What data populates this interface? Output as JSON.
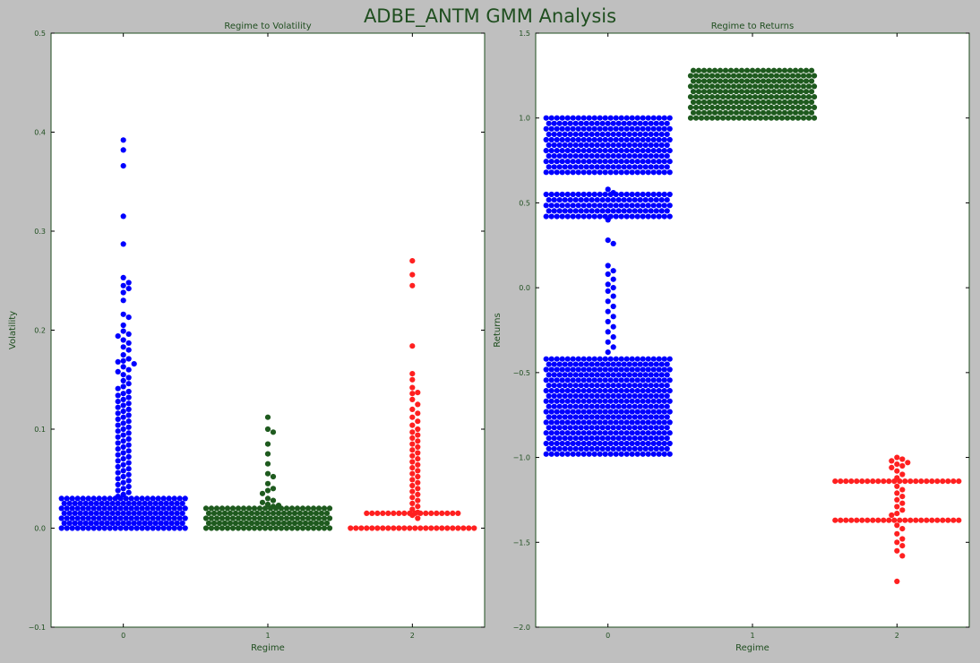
{
  "figure": {
    "suptitle": "ADBE_ANTM GMM Analysis"
  },
  "colors": {
    "regime0": "#0000ff",
    "regime1": "#1e5a1e",
    "regime2": "#ff2020",
    "axis_text": "#1f4e1f",
    "figure_bg": "#bfbfbf",
    "plot_bg": "#ffffff"
  },
  "chart_data": [
    {
      "type": "scatter",
      "style": "swarm",
      "title": "Regime to Volatility",
      "xlabel": "Regime",
      "ylabel": "Volatility",
      "categories": [
        "0",
        "1",
        "2"
      ],
      "ylim": [
        -0.1,
        0.5
      ],
      "yticks": [
        -0.1,
        0.0,
        0.1,
        0.2,
        0.3,
        0.4,
        0.5
      ],
      "ytick_labels": [
        "−0.1",
        "0.0",
        "0.1",
        "0.2",
        "0.3",
        "0.4",
        "0.5"
      ],
      "grid": false,
      "series": [
        {
          "category": "0",
          "dense_bands": [
            {
              "range": [
                0.0,
                0.03
              ],
              "count": 380
            }
          ],
          "values": [
            0.392,
            0.382,
            0.366,
            0.315,
            0.287,
            0.253,
            0.248,
            0.245,
            0.242,
            0.238,
            0.23,
            0.216,
            0.213,
            0.205,
            0.199,
            0.196,
            0.194,
            0.19,
            0.187,
            0.183,
            0.18,
            0.175,
            0.171,
            0.169,
            0.168,
            0.166,
            0.163,
            0.16,
            0.158,
            0.155,
            0.152,
            0.149,
            0.146,
            0.143,
            0.141,
            0.138,
            0.136,
            0.134,
            0.132,
            0.13,
            0.128,
            0.126,
            0.124,
            0.122,
            0.12,
            0.118,
            0.116,
            0.114,
            0.112,
            0.11,
            0.108,
            0.106,
            0.104,
            0.102,
            0.1,
            0.098,
            0.096,
            0.094,
            0.092,
            0.09,
            0.088,
            0.086,
            0.084,
            0.082,
            0.08,
            0.078,
            0.076,
            0.074,
            0.072,
            0.07,
            0.068,
            0.066,
            0.064,
            0.062,
            0.06,
            0.058,
            0.056,
            0.054,
            0.052,
            0.05,
            0.048,
            0.046,
            0.044,
            0.042,
            0.04,
            0.038,
            0.036,
            0.034,
            0.032
          ]
        },
        {
          "category": "1",
          "dense_bands": [
            {
              "range": [
                0.0,
                0.02
              ],
              "count": 150
            }
          ],
          "values": [
            0.112,
            0.1,
            0.097,
            0.085,
            0.075,
            0.065,
            0.055,
            0.052,
            0.045,
            0.04,
            0.038,
            0.035,
            0.03,
            0.028,
            0.026,
            0.024,
            0.023,
            0.022
          ]
        },
        {
          "category": "2",
          "dense_bands": [],
          "values": [
            0.27,
            0.256,
            0.245,
            0.184,
            0.156,
            0.15,
            0.142,
            0.137,
            0.136,
            0.13,
            0.125,
            0.12,
            0.116,
            0.112,
            0.108,
            0.104,
            0.1,
            0.097,
            0.094,
            0.091,
            0.088,
            0.085,
            0.082,
            0.079,
            0.076,
            0.073,
            0.07,
            0.067,
            0.064,
            0.061,
            0.058,
            0.055,
            0.052,
            0.049,
            0.046,
            0.043,
            0.04,
            0.037,
            0.034,
            0.031,
            0.028,
            0.025,
            0.022,
            0.019,
            0.016,
            0.013,
            0.01
          ],
          "repeated": [
            {
              "value": 0.0,
              "count": 34
            },
            {
              "value": 0.015,
              "count": 18
            }
          ]
        }
      ]
    },
    {
      "type": "scatter",
      "style": "swarm",
      "title": "Regime to Returns",
      "xlabel": "Regime",
      "ylabel": "Returns",
      "categories": [
        "0",
        "1",
        "2"
      ],
      "ylim": [
        -2.0,
        1.5
      ],
      "yticks": [
        -2.0,
        -1.5,
        -1.0,
        -0.5,
        0.0,
        0.5,
        1.0,
        1.5
      ],
      "ytick_labels": [
        "−2.0",
        "−1.5",
        "−1.0",
        "−0.5",
        "0.0",
        "0.5",
        "1.0",
        "1.5"
      ],
      "grid": false,
      "series": [
        {
          "category": "0",
          "dense_bands": [
            {
              "range": [
                0.68,
                1.0
              ],
              "count": 300
            },
            {
              "range": [
                0.42,
                0.55
              ],
              "count": 120
            },
            {
              "range": [
                -0.98,
                -0.42
              ],
              "count": 340
            }
          ],
          "values": [
            0.58,
            0.56,
            0.4,
            0.28,
            0.26,
            0.13,
            0.1,
            0.08,
            0.05,
            0.02,
            0.0,
            -0.02,
            -0.05,
            -0.08,
            -0.11,
            -0.14,
            -0.17,
            -0.2,
            -0.23,
            -0.26,
            -0.29,
            -0.32,
            -0.35,
            -0.38
          ]
        },
        {
          "category": "1",
          "dense_bands": [
            {
              "range": [
                1.0,
                1.28
              ],
              "count": 280
            }
          ],
          "values": []
        },
        {
          "category": "2",
          "dense_bands": [],
          "values": [
            -1.0,
            -1.01,
            -1.02,
            -1.03,
            -1.04,
            -1.05,
            -1.06,
            -1.08,
            -1.1,
            -1.12,
            -1.17,
            -1.19,
            -1.21,
            -1.23,
            -1.25,
            -1.27,
            -1.29,
            -1.31,
            -1.33,
            -1.34,
            -1.4,
            -1.42,
            -1.45,
            -1.48,
            -1.5,
            -1.52,
            -1.55,
            -1.58,
            -1.73
          ],
          "repeated": [
            {
              "value": -1.14,
              "count": 40
            },
            {
              "value": -1.37,
              "count": 38
            }
          ]
        }
      ]
    }
  ]
}
